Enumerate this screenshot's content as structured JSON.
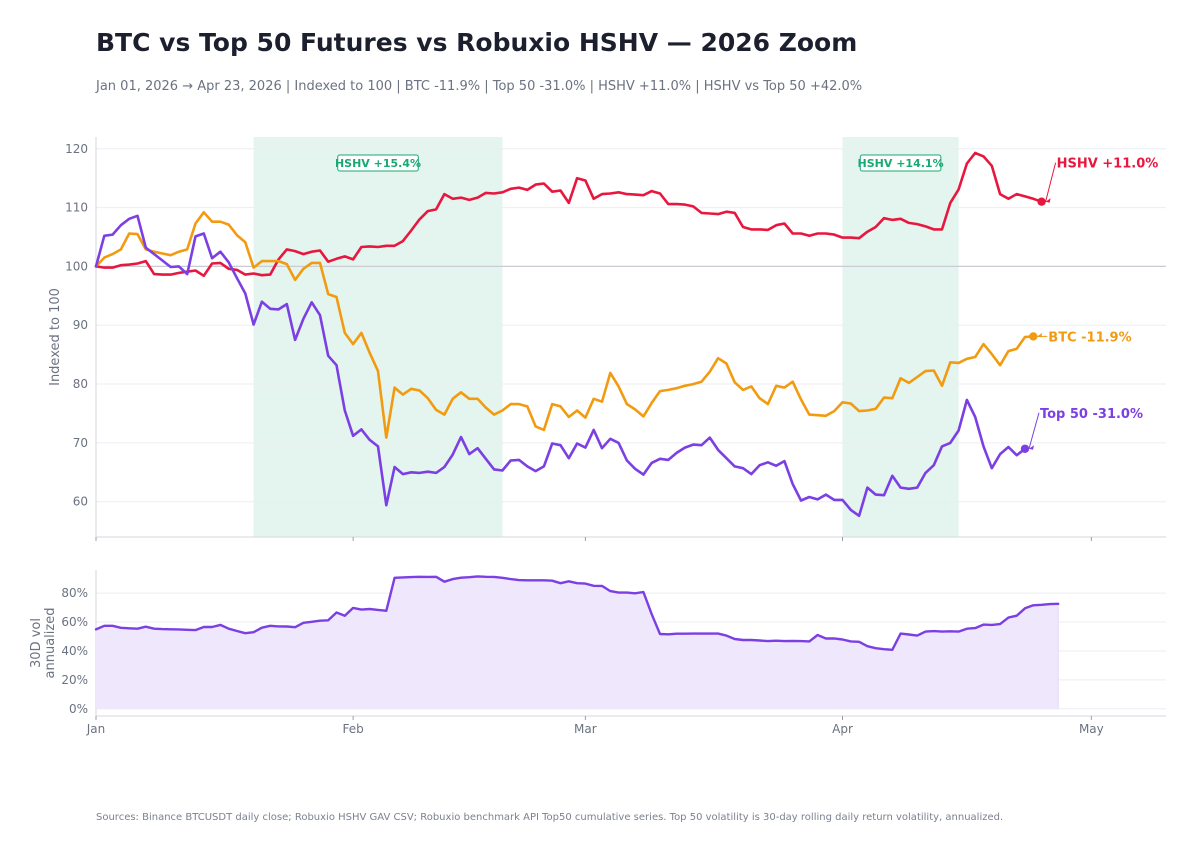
{
  "header": {
    "title": "BTC vs Top 50 Futures vs Robuxio HSHV — 2026 Zoom",
    "subtitle": "Jan 01, 2026 → Apr 23, 2026 | Indexed to 100 | BTC -11.9% | Top 50 -31.0% | HSHV +11.0% | HSHV vs Top 50 +42.0%"
  },
  "footer": {
    "sources": "Sources: Binance BTCUSDT daily close; Robuxio HSHV GAV CSV; Robuxio benchmark API Top50 cumulative series. Top 50 volatility is 30-day rolling daily return volatility, annualized."
  },
  "chart_data": [
    {
      "type": "line",
      "ylabel": "Indexed to 100",
      "ylim": [
        54,
        122
      ],
      "yticks": [
        60,
        70,
        80,
        90,
        100,
        110,
        120
      ],
      "xlim": [
        "2026-01-01",
        "2026-05-10"
      ],
      "xticks": [
        {
          "date": "2026-01-01",
          "label": "Jan"
        },
        {
          "date": "2026-02-01",
          "label": "Feb"
        },
        {
          "date": "2026-03-01",
          "label": "Mar"
        },
        {
          "date": "2026-04-01",
          "label": "Apr"
        },
        {
          "date": "2026-05-01",
          "label": "May"
        }
      ],
      "grid": true,
      "reference_line": 100,
      "x_start": "2026-01-01",
      "shaded_periods": [
        {
          "start": "2026-01-20",
          "end": "2026-02-19",
          "label": "HSHV +15.4%",
          "color": "#19a974"
        },
        {
          "start": "2026-04-01",
          "end": "2026-04-15",
          "label": "HSHV +14.1%",
          "color": "#19a974"
        }
      ],
      "series": [
        {
          "name": "HSHV",
          "end_label": "HSHV +11.0%",
          "color": "#e8173f",
          "values": [
            100.0,
            99.8,
            99.8,
            100.2,
            100.3,
            100.5,
            100.9,
            98.7,
            98.6,
            98.6,
            98.9,
            99.1,
            99.3,
            98.4,
            100.5,
            100.6,
            99.6,
            99.4,
            98.6,
            98.8,
            98.5,
            98.6,
            101.2,
            102.9,
            102.6,
            102.1,
            102.5,
            102.7,
            100.8,
            101.3,
            101.7,
            101.2,
            103.3,
            103.4,
            103.3,
            103.5,
            103.5,
            104.3,
            106.1,
            108.0,
            109.4,
            109.7,
            112.3,
            111.5,
            111.7,
            111.3,
            111.7,
            112.5,
            112.4,
            112.6,
            113.2,
            113.4,
            113.0,
            113.9,
            114.1,
            112.7,
            112.9,
            110.8,
            115.0,
            114.6,
            111.5,
            112.3,
            112.4,
            112.6,
            112.3,
            112.2,
            112.1,
            112.8,
            112.4,
            110.6,
            110.6,
            110.5,
            110.2,
            109.1,
            109.0,
            108.9,
            109.3,
            109.1,
            106.7,
            106.3,
            106.3,
            106.2,
            107.0,
            107.3,
            105.6,
            105.6,
            105.2,
            105.6,
            105.6,
            105.4,
            104.9,
            104.9,
            104.8,
            105.9,
            106.7,
            108.2,
            107.9,
            108.1,
            107.4,
            107.2,
            106.8,
            106.3,
            106.3,
            110.8,
            113.1,
            117.5,
            119.3,
            118.7,
            117.1,
            112.3,
            111.5,
            112.3,
            111.9,
            111.5,
            111.0
          ]
        },
        {
          "name": "BTC",
          "end_label": "BTC -11.9%",
          "color": "#f29b11",
          "values": [
            100.0,
            101.5,
            102.1,
            102.9,
            105.6,
            105.5,
            102.9,
            102.5,
            102.2,
            101.9,
            102.5,
            102.9,
            107.3,
            109.2,
            107.6,
            107.6,
            107.1,
            105.3,
            104.1,
            99.8,
            100.9,
            100.9,
            100.9,
            100.4,
            97.7,
            99.6,
            100.6,
            100.6,
            95.3,
            94.8,
            88.7,
            86.8,
            88.7,
            85.3,
            82.2,
            70.9,
            79.4,
            78.2,
            79.2,
            78.9,
            77.6,
            75.6,
            74.8,
            77.5,
            78.6,
            77.5,
            77.5,
            76.0,
            74.8,
            75.5,
            76.6,
            76.6,
            76.2,
            72.8,
            72.2,
            76.6,
            76.2,
            74.4,
            75.5,
            74.3,
            77.5,
            77.0,
            81.9,
            79.6,
            76.6,
            75.7,
            74.5,
            76.8,
            78.8,
            79.0,
            79.3,
            79.7,
            80.0,
            80.4,
            82.1,
            84.4,
            83.5,
            80.3,
            79.0,
            79.6,
            77.6,
            76.6,
            79.7,
            79.4,
            80.4,
            77.4,
            74.8,
            74.7,
            74.6,
            75.4,
            76.9,
            76.7,
            75.4,
            75.5,
            75.8,
            77.7,
            77.6,
            81.0,
            80.2,
            81.2,
            82.2,
            82.3,
            79.7,
            83.7,
            83.6,
            84.3,
            84.6,
            86.8,
            85.1,
            83.2,
            85.6,
            86.0,
            88.0,
            88.1
          ]
        },
        {
          "name": "Top 50",
          "end_label": "Top 50 -31.0%",
          "color": "#7b3fe4",
          "values": [
            100.0,
            105.2,
            105.4,
            107.0,
            108.1,
            108.6,
            103.2,
            102.1,
            101.0,
            99.9,
            100.0,
            98.7,
            105.1,
            105.6,
            101.4,
            102.5,
            100.7,
            98.0,
            95.4,
            90.1,
            94.0,
            92.8,
            92.7,
            93.6,
            87.5,
            91.1,
            93.9,
            91.7,
            84.8,
            83.2,
            75.5,
            71.2,
            72.3,
            70.5,
            69.4,
            59.4,
            65.9,
            64.7,
            65.0,
            64.9,
            65.1,
            64.9,
            65.9,
            68.0,
            71.0,
            68.1,
            69.1,
            67.3,
            65.5,
            65.3,
            67.0,
            67.1,
            66.0,
            65.2,
            66.0,
            69.9,
            69.6,
            67.4,
            69.9,
            69.2,
            72.2,
            69.1,
            70.7,
            70.0,
            67.0,
            65.6,
            64.6,
            66.6,
            67.3,
            67.1,
            68.3,
            69.2,
            69.7,
            69.6,
            70.9,
            68.8,
            67.4,
            66.0,
            65.7,
            64.7,
            66.2,
            66.7,
            66.1,
            66.9,
            63.0,
            60.2,
            60.8,
            60.4,
            61.2,
            60.3,
            60.3,
            58.6,
            57.6,
            62.4,
            61.2,
            61.1,
            64.4,
            62.4,
            62.2,
            62.4,
            64.9,
            66.2,
            69.4,
            70.0,
            72.1,
            77.3,
            74.4,
            69.4,
            65.7,
            68.1,
            69.3,
            67.9,
            69.0
          ]
        }
      ]
    },
    {
      "type": "area",
      "ylabel": "30D vol annualized",
      "ylim": [
        -5,
        96
      ],
      "yticks": [
        0,
        20,
        40,
        60,
        80
      ],
      "ytick_labels": [
        "0%",
        "20%",
        "40%",
        "60%",
        "80%"
      ],
      "grid": true,
      "color": "#7b3fe4",
      "fill": "#efe7fc",
      "series": [
        {
          "values": [
            54.9,
            57.4,
            57.4,
            56.0,
            55.7,
            55.4,
            56.8,
            55.4,
            55.1,
            55.0,
            54.9,
            54.6,
            54.4,
            56.6,
            56.6,
            58.0,
            55.4,
            53.8,
            52.3,
            53.0,
            56.1,
            57.4,
            57.0,
            56.9,
            56.4,
            59.5,
            60.2,
            60.9,
            61.2,
            66.6,
            64.3,
            69.8,
            68.6,
            69.0,
            68.4,
            67.8,
            90.6,
            90.9,
            91.1,
            91.3,
            91.2,
            91.3,
            87.9,
            89.7,
            90.7,
            91.0,
            91.6,
            91.3,
            91.2,
            90.6,
            89.7,
            89.0,
            88.9,
            88.9,
            88.9,
            88.6,
            86.9,
            88.2,
            86.9,
            86.6,
            85.1,
            85.0,
            81.4,
            80.4,
            80.4,
            79.9,
            80.8,
            65.4,
            51.7,
            51.5,
            51.9,
            51.9,
            52.0,
            52.0,
            52.0,
            52.0,
            50.6,
            48.3,
            47.6,
            47.6,
            47.2,
            46.8,
            47.1,
            46.8,
            46.9,
            46.8,
            46.6,
            51.0,
            48.6,
            48.7,
            47.9,
            46.6,
            46.3,
            43.3,
            41.9,
            41.2,
            40.8,
            52.0,
            51.4,
            50.6,
            53.4,
            53.7,
            53.4,
            53.6,
            53.4,
            55.4,
            55.8,
            58.2,
            58.0,
            58.6,
            63.1,
            64.4,
            69.5,
            71.6,
            71.9,
            72.4,
            72.6
          ]
        }
      ]
    }
  ]
}
